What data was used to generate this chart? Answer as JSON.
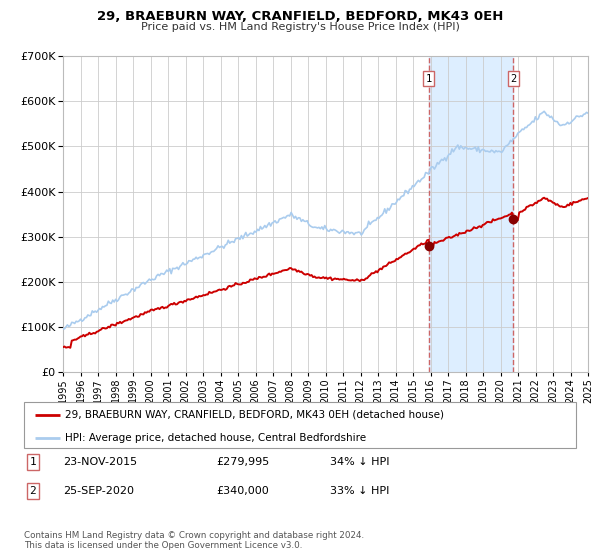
{
  "title": "29, BRAEBURN WAY, CRANFIELD, BEDFORD, MK43 0EH",
  "subtitle": "Price paid vs. HM Land Registry's House Price Index (HPI)",
  "legend_label_red": "29, BRAEBURN WAY, CRANFIELD, BEDFORD, MK43 0EH (detached house)",
  "legend_label_blue": "HPI: Average price, detached house, Central Bedfordshire",
  "footnote": "Contains HM Land Registry data © Crown copyright and database right 2024.\nThis data is licensed under the Open Government Licence v3.0.",
  "marker1_date": "23-NOV-2015",
  "marker1_price": "£279,995",
  "marker1_pct": "34% ↓ HPI",
  "marker1_year": 2015.9,
  "marker1_value_red": 279995,
  "marker2_date": "25-SEP-2020",
  "marker2_price": "£340,000",
  "marker2_pct": "33% ↓ HPI",
  "marker2_year": 2020.73,
  "marker2_value_red": 340000,
  "red_color": "#cc0000",
  "blue_color": "#aaccee",
  "marker_dot_color": "#880000",
  "vline_color": "#cc6666",
  "shade_color": "#ddeeff",
  "grid_color": "#cccccc",
  "ylim": [
    0,
    700000
  ],
  "xlim_start": 1995,
  "xlim_end": 2025,
  "yticks": [
    0,
    100000,
    200000,
    300000,
    400000,
    500000,
    600000,
    700000
  ],
  "xticks": [
    1995,
    1996,
    1997,
    1998,
    1999,
    2000,
    2001,
    2002,
    2003,
    2004,
    2005,
    2006,
    2007,
    2008,
    2009,
    2010,
    2011,
    2012,
    2013,
    2014,
    2015,
    2016,
    2017,
    2018,
    2019,
    2020,
    2021,
    2022,
    2023,
    2024,
    2025
  ]
}
